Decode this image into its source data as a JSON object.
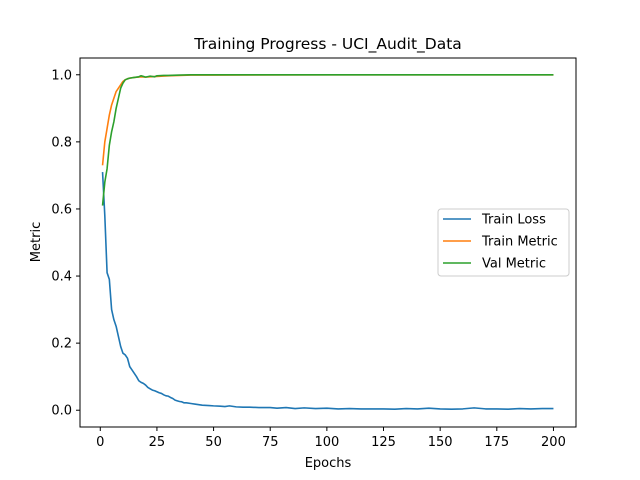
{
  "chart_data": {
    "type": "line",
    "title": "Training Progress - UCI_Audit_Data",
    "xlabel": "Epochs",
    "ylabel": "Metric",
    "xlim": [
      -8.95,
      209.95
    ],
    "ylim": [
      -0.05,
      1.05
    ],
    "xticks": [
      0,
      25,
      50,
      75,
      100,
      125,
      150,
      175,
      200
    ],
    "yticks": [
      0.0,
      0.2,
      0.4,
      0.6,
      0.8,
      1.0
    ],
    "grid": false,
    "legend_position": "center-right",
    "series": [
      {
        "name": "Train Loss",
        "color": "#1f77b4",
        "points": [
          [
            1,
            0.71
          ],
          [
            2,
            0.58
          ],
          [
            3,
            0.41
          ],
          [
            4,
            0.39
          ],
          [
            5,
            0.3
          ],
          [
            6,
            0.27
          ],
          [
            7,
            0.25
          ],
          [
            8,
            0.22
          ],
          [
            9,
            0.19
          ],
          [
            10,
            0.17
          ],
          [
            11,
            0.165
          ],
          [
            12,
            0.155
          ],
          [
            13,
            0.13
          ],
          [
            14,
            0.12
          ],
          [
            15,
            0.11
          ],
          [
            16,
            0.1
          ],
          [
            17,
            0.088
          ],
          [
            18,
            0.083
          ],
          [
            19,
            0.08
          ],
          [
            20,
            0.075
          ],
          [
            21,
            0.068
          ],
          [
            22,
            0.064
          ],
          [
            23,
            0.06
          ],
          [
            24,
            0.058
          ],
          [
            25,
            0.055
          ],
          [
            26,
            0.052
          ],
          [
            27,
            0.05
          ],
          [
            28,
            0.046
          ],
          [
            29,
            0.043
          ],
          [
            30,
            0.042
          ],
          [
            31,
            0.038
          ],
          [
            32,
            0.035
          ],
          [
            33,
            0.03
          ],
          [
            34,
            0.028
          ],
          [
            35,
            0.026
          ],
          [
            36,
            0.025
          ],
          [
            37,
            0.022
          ],
          [
            38,
            0.022
          ],
          [
            40,
            0.02
          ],
          [
            42,
            0.018
          ],
          [
            45,
            0.015
          ],
          [
            48,
            0.014
          ],
          [
            50,
            0.013
          ],
          [
            53,
            0.012
          ],
          [
            55,
            0.011
          ],
          [
            57,
            0.013
          ],
          [
            60,
            0.01
          ],
          [
            63,
            0.009
          ],
          [
            66,
            0.009
          ],
          [
            70,
            0.008
          ],
          [
            75,
            0.008
          ],
          [
            78,
            0.006
          ],
          [
            82,
            0.008
          ],
          [
            86,
            0.005
          ],
          [
            90,
            0.007
          ],
          [
            95,
            0.005
          ],
          [
            100,
            0.006
          ],
          [
            105,
            0.004
          ],
          [
            110,
            0.005
          ],
          [
            115,
            0.004
          ],
          [
            120,
            0.004
          ],
          [
            125,
            0.004
          ],
          [
            130,
            0.003
          ],
          [
            135,
            0.005
          ],
          [
            140,
            0.004
          ],
          [
            145,
            0.006
          ],
          [
            150,
            0.004
          ],
          [
            155,
            0.003
          ],
          [
            160,
            0.004
          ],
          [
            165,
            0.007
          ],
          [
            170,
            0.004
          ],
          [
            175,
            0.004
          ],
          [
            180,
            0.003
          ],
          [
            185,
            0.005
          ],
          [
            190,
            0.004
          ],
          [
            195,
            0.005
          ],
          [
            200,
            0.005
          ]
        ]
      },
      {
        "name": "Train Metric",
        "color": "#ff7f0e",
        "points": [
          [
            1,
            0.73
          ],
          [
            2,
            0.8
          ],
          [
            3,
            0.84
          ],
          [
            4,
            0.88
          ],
          [
            5,
            0.91
          ],
          [
            6,
            0.93
          ],
          [
            7,
            0.95
          ],
          [
            8,
            0.96
          ],
          [
            9,
            0.97
          ],
          [
            10,
            0.98
          ],
          [
            11,
            0.985
          ],
          [
            12,
            0.988
          ],
          [
            13,
            0.99
          ],
          [
            15,
            0.992
          ],
          [
            18,
            0.994
          ],
          [
            20,
            0.993
          ],
          [
            22,
            0.994
          ],
          [
            25,
            0.995
          ],
          [
            28,
            0.996
          ],
          [
            30,
            0.997
          ],
          [
            35,
            0.998
          ],
          [
            40,
            0.999
          ],
          [
            50,
            0.999
          ],
          [
            100,
            1.0
          ],
          [
            150,
            1.0
          ],
          [
            200,
            1.0
          ]
        ]
      },
      {
        "name": "Val Metric",
        "color": "#2ca02c",
        "points": [
          [
            1,
            0.61
          ],
          [
            2,
            0.68
          ],
          [
            3,
            0.72
          ],
          [
            4,
            0.79
          ],
          [
            5,
            0.83
          ],
          [
            6,
            0.86
          ],
          [
            7,
            0.9
          ],
          [
            8,
            0.93
          ],
          [
            9,
            0.96
          ],
          [
            10,
            0.975
          ],
          [
            11,
            0.985
          ],
          [
            12,
            0.988
          ],
          [
            13,
            0.99
          ],
          [
            15,
            0.992
          ],
          [
            17,
            0.994
          ],
          [
            18,
            0.997
          ],
          [
            19,
            0.995
          ],
          [
            20,
            0.993
          ],
          [
            22,
            0.996
          ],
          [
            24,
            0.994
          ],
          [
            25,
            0.997
          ],
          [
            28,
            0.998
          ],
          [
            30,
            0.998
          ],
          [
            35,
            0.999
          ],
          [
            40,
            1.0
          ],
          [
            100,
            1.0
          ],
          [
            150,
            1.0
          ],
          [
            200,
            1.0
          ]
        ]
      }
    ]
  }
}
